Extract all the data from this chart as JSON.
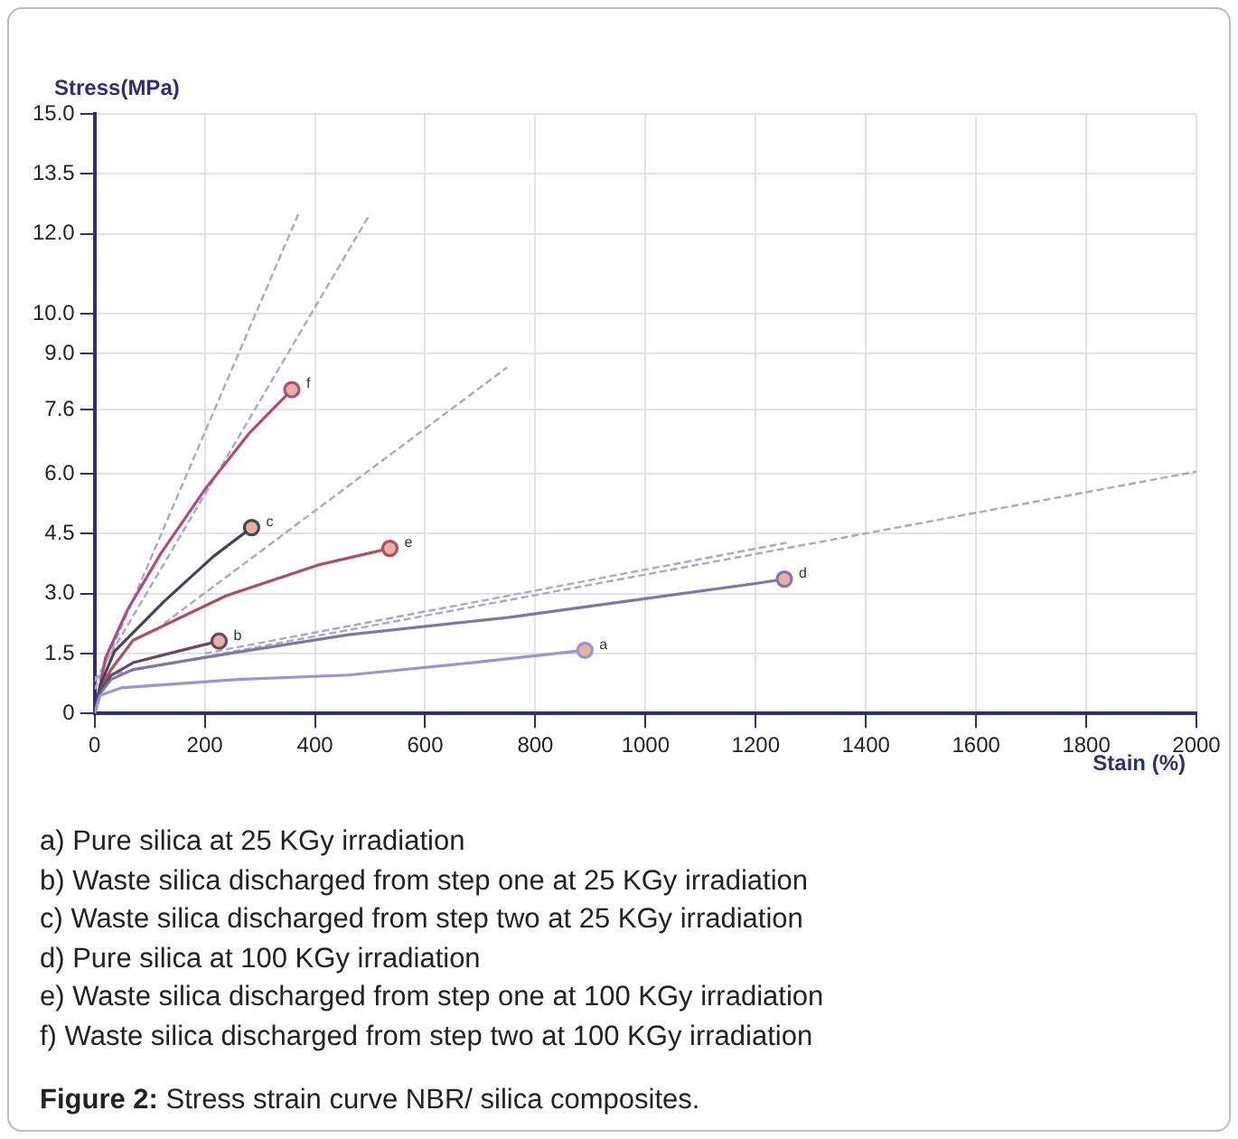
{
  "chart_data": {
    "type": "line",
    "xlabel": "Stain (%)",
    "ylabel": "Stress(MPa)",
    "xlim": [
      0,
      2000
    ],
    "xticks": [
      0,
      200,
      400,
      600,
      800,
      1000,
      1200,
      1400,
      1600,
      1800,
      2000
    ],
    "ylim": [
      0,
      15
    ],
    "yticks": [
      0,
      1.5,
      {
        "value": 3,
        "label": "3.0"
      },
      4.5,
      {
        "value": 6,
        "label": "6.0"
      },
      7.6,
      {
        "value": 9,
        "label": "9.0"
      },
      {
        "value": 10,
        "label": "10.0"
      },
      {
        "value": 12,
        "label": "12.0"
      },
      13.5,
      {
        "value": 15,
        "label": "15.0"
      }
    ],
    "grid": true,
    "legend": false,
    "line_style": "solid",
    "series": [
      {
        "name": "a",
        "color": "#9a94d8",
        "x": [
          0,
          10,
          48,
          260,
          461,
          685,
          890
        ],
        "values": [
          0,
          0.45,
          0.64,
          0.85,
          0.96,
          1.27,
          1.58
        ]
      },
      {
        "name": "b",
        "color": "#6a4a5a",
        "x": [
          0,
          10,
          30,
          70,
          150,
          226
        ],
        "values": [
          0,
          0.6,
          0.95,
          1.27,
          1.55,
          1.81
        ]
      },
      {
        "name": "c",
        "color": "#444455",
        "x": [
          0,
          10,
          36,
          126,
          215,
          285
        ],
        "values": [
          0,
          0.7,
          1.55,
          2.8,
          3.92,
          4.65
        ]
      },
      {
        "name": "d",
        "color": "#7a78b0",
        "x": [
          0,
          10,
          30,
          70,
          200,
          461,
          750,
          998,
          1200,
          1252
        ],
        "values": [
          0,
          0.5,
          0.85,
          1.1,
          1.4,
          1.97,
          2.4,
          2.87,
          3.25,
          3.36
        ]
      },
      {
        "name": "e",
        "color": "#b0505a",
        "x": [
          0,
          10,
          30,
          70,
          238,
          405,
          536
        ],
        "values": [
          0,
          0.6,
          1.1,
          1.83,
          2.94,
          3.71,
          4.13
        ]
      },
      {
        "name": "f",
        "color": "#b04a80",
        "x": [
          0,
          20,
          60,
          120,
          200,
          280,
          358
        ],
        "values": [
          0,
          1.4,
          2.6,
          4.0,
          5.6,
          7.0,
          8.1
        ]
      },
      {
        "type": "line",
        "line_style": "dashed",
        "color": "#a8a8c8",
        "x": [
          0,
          370
        ],
        "values": [
          0.6,
          12.5
        ]
      },
      {
        "type": "line",
        "line_style": "dashed",
        "color": "#a8a8c8",
        "x": [
          0,
          500
        ],
        "values": [
          0.8,
          12.5
        ]
      },
      {
        "type": "line",
        "line_style": "dashed",
        "color": "#a8a8c8",
        "x": [
          126,
          749
        ],
        "values": [
          2.25,
          8.66
        ]
      },
      {
        "type": "line",
        "line_style": "dashed",
        "color": "#a8a8c8",
        "x": [
          0,
          2000
        ],
        "values": [
          0.9,
          6.05
        ]
      },
      {
        "type": "line",
        "line_style": "dashed",
        "color": "#a8a8c8",
        "x": [
          200,
          1256
        ],
        "values": [
          1.5,
          4.27
        ]
      }
    ],
    "annotations": [
      "a) Pure silica at 25 KGy irradiation",
      "b) Waste silica discharged from step one at 25 KGy irradiation",
      "c) Waste silica discharged from step two at 25 KGy irradiation",
      "d) Pure silica at 100 KGy irradiation",
      "e) Waste silica discharged from step one at 100 KGy irradiation",
      "f) Waste silica discharged from step two at 100 KGy irradiation",
      "Figure 2: Stress strain curve NBR/ silica composites."
    ]
  }
}
